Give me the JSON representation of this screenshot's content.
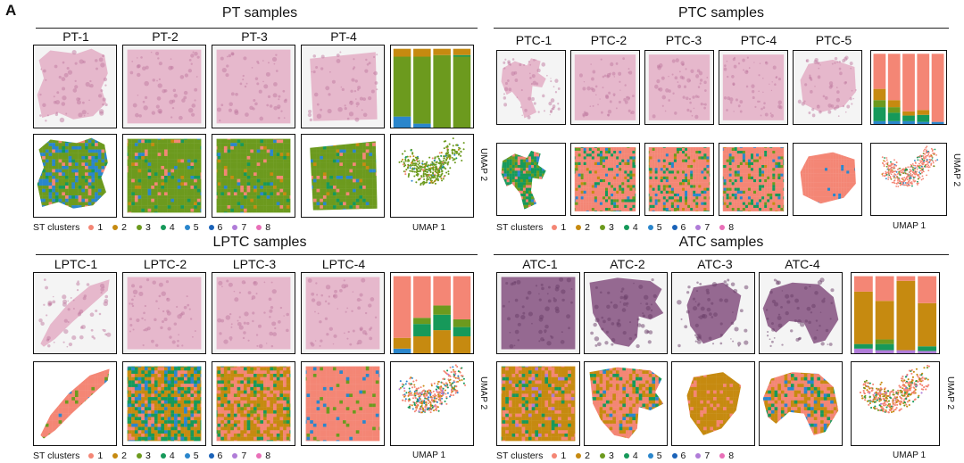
{
  "figure_letter": "A",
  "colors": {
    "1": "#f48675",
    "2": "#c68a10",
    "3": "#6c9a1e",
    "4": "#16995a",
    "5": "#2a86cc",
    "6": "#1a62b8",
    "7": "#b07cd8",
    "8": "#e96fb8",
    "he_pink": "#e6b8cc",
    "he_purple": "#8b5a86"
  },
  "panels": [
    {
      "title": "PT samples",
      "samples": [
        "PT-1",
        "PT-2",
        "PT-3",
        "PT-4"
      ],
      "legend_label": "ST clusters",
      "clusters": [
        "1",
        "2",
        "3",
        "4",
        "5",
        "6",
        "7",
        "8"
      ],
      "umap_x": "UMAP 1",
      "umap_y": "UMAP 2"
    },
    {
      "title": "PTC samples",
      "samples": [
        "PTC-1",
        "PTC-2",
        "PTC-3",
        "PTC-4",
        "PTC-5"
      ],
      "legend_label": "ST clusters",
      "clusters": [
        "1",
        "2",
        "3",
        "4",
        "5",
        "6",
        "7",
        "8"
      ],
      "umap_x": "UMAP 1",
      "umap_y": "UMAP 2"
    },
    {
      "title": "LPTC samples",
      "samples": [
        "LPTC-1",
        "LPTC-2",
        "LPTC-3",
        "LPTC-4"
      ],
      "legend_label": "ST clusters",
      "clusters": [
        "1",
        "2",
        "3",
        "4",
        "5",
        "6",
        "7",
        "8"
      ],
      "umap_x": "UMAP 1",
      "umap_y": "UMAP 2"
    },
    {
      "title": "ATC samples",
      "samples": [
        "ATC-1",
        "ATC-2",
        "ATC-3",
        "ATC-4"
      ],
      "legend_label": "ST clusters",
      "clusters": [
        "1",
        "2",
        "3",
        "4",
        "5",
        "6",
        "7",
        "8"
      ],
      "umap_x": "UMAP 1",
      "umap_y": "UMAP 2"
    }
  ]
}
